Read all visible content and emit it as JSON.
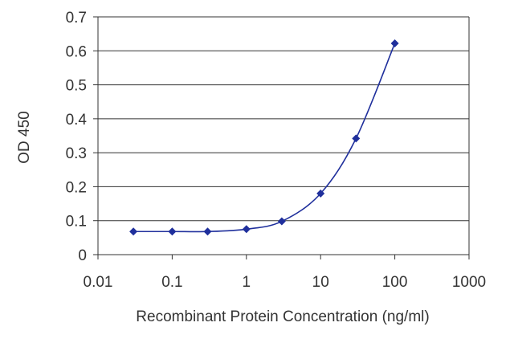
{
  "chart_data": {
    "type": "line",
    "title": "",
    "xlabel": "Recombinant Protein Concentration (ng/ml)",
    "ylabel": "OD 450",
    "x_scale": "log",
    "xlim": [
      0.01,
      1000
    ],
    "ylim": [
      0,
      0.7
    ],
    "x_ticks": [
      "0.01",
      "0.1",
      "1",
      "10",
      "100",
      "1000"
    ],
    "y_ticks": [
      "0",
      "0.1",
      "0.2",
      "0.3",
      "0.4",
      "0.5",
      "0.6",
      "0.7"
    ],
    "grid": "horizontal",
    "legend": "none",
    "series": [
      {
        "x": [
          0.03,
          0.1,
          0.3,
          1,
          3,
          10,
          30,
          100
        ],
        "y": [
          0.068,
          0.068,
          0.068,
          0.075,
          0.098,
          0.18,
          0.342,
          0.622
        ],
        "color": "#1f2f9c"
      }
    ]
  }
}
